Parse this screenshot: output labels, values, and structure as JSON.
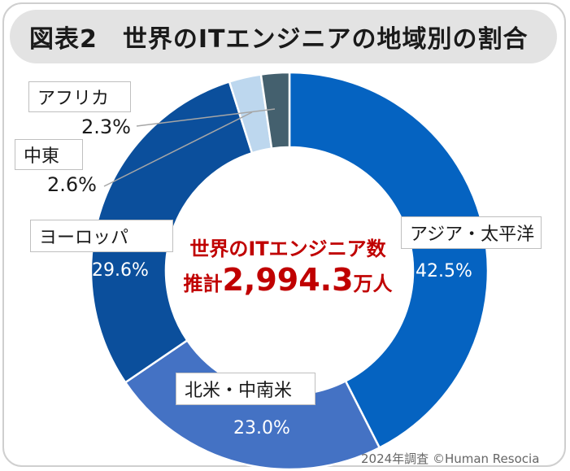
{
  "title": "図表2　世界のITエンジニアの地域別の割合",
  "center": {
    "line1": "世界のITエンジニア数",
    "prefix": "推計",
    "value": "2,994.3",
    "suffix": "万人"
  },
  "credit": "2024年調査 ©Human Resocia",
  "chart_data": {
    "type": "pie",
    "variant": "donut",
    "title": "図表2　世界のITエンジニアの地域別の割合",
    "categories": [
      "アジア・太平洋",
      "北米・中南米",
      "ヨーロッパ",
      "中東",
      "アフリカ"
    ],
    "values": [
      42.5,
      23.0,
      29.6,
      2.6,
      2.3
    ],
    "value_labels": [
      "42.5%",
      "23.0%",
      "29.6%",
      "2.6%",
      "2.3%"
    ],
    "colors": [
      "#0563c1",
      "#4472c4",
      "#0b4f9c",
      "#bdd7ee",
      "#44606e"
    ],
    "start": "12 o'clock",
    "direction": "clockwise"
  }
}
